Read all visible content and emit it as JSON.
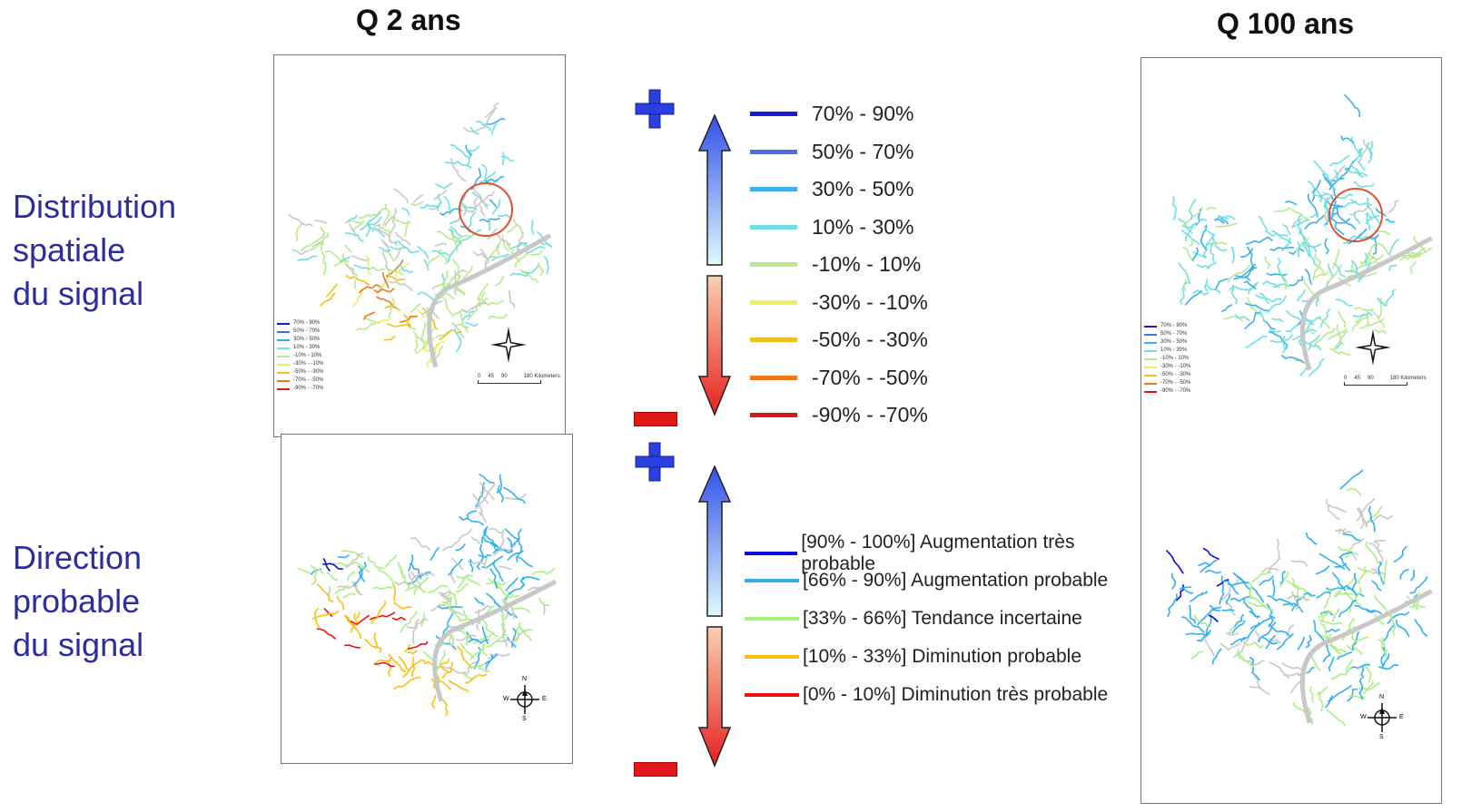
{
  "titles": {
    "left": "Q 2 ans",
    "right": "Q 100 ans"
  },
  "row_labels": {
    "top": [
      "Distribution",
      "spatiale",
      "du signal"
    ],
    "bottom": [
      "Direction",
      "probable",
      "du signal"
    ]
  },
  "legend_change": [
    {
      "label": "70% - 90%",
      "color": "#1a1ad0"
    },
    {
      "label": "50% - 70%",
      "color": "#4a6ee0"
    },
    {
      "label": "30% - 50%",
      "color": "#3ab0e8"
    },
    {
      "label": "10% - 30%",
      "color": "#6ee0e0"
    },
    {
      "label": "-10% - 10%",
      "color": "#b8e890"
    },
    {
      "label": "-30% - -10%",
      "color": "#eaf060"
    },
    {
      "label": "-50% - -30%",
      "color": "#f0c020"
    },
    {
      "label": "-70% - -50%",
      "color": "#f07818"
    },
    {
      "label": "-90% - -70%",
      "color": "#d81818"
    }
  ],
  "legend_probability": [
    {
      "label": "[90% - 100%] Augmentation très probable",
      "color": "#0a0ae0"
    },
    {
      "label": "[66% - 90%] Augmentation probable",
      "color": "#30b0f0"
    },
    {
      "label": "[33% - 66%] Tendance incertaine",
      "color": "#a8f080"
    },
    {
      "label": "[10% - 33%] Diminution probable",
      "color": "#f8c010"
    },
    {
      "label": "[0% - 10%] Diminution très probable",
      "color": "#f01010"
    }
  ],
  "mini_legend": [
    "70% - 90%",
    "50% - 70%",
    "30% - 50%",
    "10% - 30%",
    "-10% - 10%",
    "-30% - -10%",
    "-50% - -30%",
    "-70% - -50%",
    "-90% - -70%"
  ],
  "scalebar": {
    "ticks": [
      "0",
      "45",
      "90",
      "180 Kilometers"
    ]
  },
  "compass": {
    "n": "N",
    "s": "S",
    "e": "E",
    "w": "W"
  },
  "colors": {
    "plus": "#2b3fe0",
    "minus": "#e01818",
    "label": "#2e2e9a",
    "circle": "#e05030",
    "grey": "#c8c8c8"
  }
}
